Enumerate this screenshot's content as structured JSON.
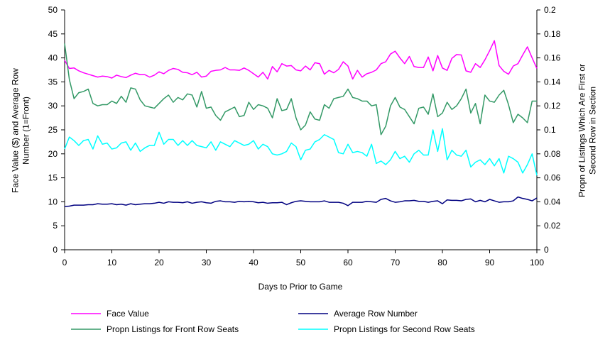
{
  "chart_data": {
    "type": "line",
    "xlabel": "Days to Prior to Game",
    "ylabel_left": "Face Value ($) and Average Row Number (1=Front)",
    "ylabel_right": "Propn of Listings Which Are First or Second Row in Section",
    "xlim": [
      0,
      100
    ],
    "xticks": [
      "0",
      "10",
      "20",
      "30",
      "40",
      "50",
      "60",
      "70",
      "80",
      "90",
      "100"
    ],
    "ylim_left": [
      0,
      50
    ],
    "yticks_left": [
      "0",
      "5",
      "10",
      "15",
      "20",
      "25",
      "30",
      "35",
      "40",
      "45",
      "50"
    ],
    "ylim_right": [
      0,
      0.2
    ],
    "yticks_right": [
      "0",
      "0.02",
      "0.04",
      "0.06",
      "0.08",
      "0.1",
      "0.12",
      "0.14",
      "0.16",
      "0.18",
      "0.2"
    ],
    "grid": false,
    "legend_position": "bottom",
    "x": [
      0,
      1,
      2,
      3,
      4,
      5,
      6,
      7,
      8,
      9,
      10,
      11,
      12,
      13,
      14,
      15,
      16,
      17,
      18,
      19,
      20,
      21,
      22,
      23,
      24,
      25,
      26,
      27,
      28,
      29,
      30,
      31,
      32,
      33,
      34,
      35,
      36,
      37,
      38,
      39,
      40,
      41,
      42,
      43,
      44,
      45,
      46,
      47,
      48,
      49,
      50,
      51,
      52,
      53,
      54,
      55,
      56,
      57,
      58,
      59,
      60,
      61,
      62,
      63,
      64,
      65,
      66,
      67,
      68,
      69,
      70,
      71,
      72,
      73,
      74,
      75,
      76,
      77,
      78,
      79,
      80,
      81,
      82,
      83,
      84,
      85,
      86,
      87,
      88,
      89,
      90,
      91,
      92,
      93,
      94,
      95,
      96,
      97,
      98,
      99,
      100
    ],
    "series": [
      {
        "name": "Face Value",
        "axis": "left",
        "color": "#ff00ff",
        "values": [
          39.5,
          37.8,
          37.9,
          37.3,
          36.9,
          36.6,
          36.3,
          36.0,
          36.2,
          36.1,
          35.8,
          36.4,
          36.1,
          35.9,
          36.4,
          36.8,
          36.5,
          36.5,
          36.0,
          36.4,
          37.1,
          36.7,
          37.4,
          37.8,
          37.6,
          37.0,
          36.9,
          36.5,
          37.0,
          36.0,
          36.2,
          37.2,
          37.4,
          37.5,
          38.0,
          37.5,
          37.5,
          37.4,
          37.9,
          37.4,
          36.7,
          36.0,
          37.0,
          35.6,
          38.2,
          37.1,
          38.8,
          38.3,
          38.4,
          37.5,
          37.3,
          38.3,
          37.5,
          39.0,
          38.8,
          36.6,
          37.4,
          36.9,
          37.6,
          39.2,
          38.3,
          35.6,
          37.4,
          36.0,
          36.7,
          37.0,
          37.5,
          38.8,
          39.2,
          40.8,
          41.4,
          40.0,
          38.8,
          40.3,
          38.2,
          38.0,
          38.0,
          40.2,
          37.3,
          40.5,
          37.9,
          37.4,
          39.9,
          40.7,
          40.6,
          37.3,
          37.0,
          38.8,
          38.0,
          39.6,
          41.5,
          43.6,
          38.4,
          37.2,
          36.6,
          38.3,
          38.8,
          40.6,
          42.3,
          40.0,
          37.8
        ]
      },
      {
        "name": "Average Row Number",
        "axis": "left",
        "color": "#000080",
        "values": [
          9.0,
          9.1,
          9.3,
          9.3,
          9.3,
          9.4,
          9.4,
          9.6,
          9.5,
          9.5,
          9.6,
          9.4,
          9.5,
          9.3,
          9.6,
          9.4,
          9.5,
          9.6,
          9.6,
          9.7,
          9.9,
          9.7,
          10.0,
          9.9,
          9.9,
          9.8,
          10.0,
          9.7,
          9.9,
          10.0,
          9.8,
          9.7,
          10.1,
          10.2,
          10.0,
          10.0,
          9.9,
          10.1,
          10.0,
          10.1,
          10.0,
          9.8,
          9.9,
          9.7,
          9.8,
          9.8,
          9.9,
          9.4,
          9.8,
          10.1,
          10.2,
          10.1,
          10.0,
          10.0,
          10.0,
          10.2,
          9.9,
          9.9,
          9.9,
          9.7,
          9.2,
          9.9,
          9.9,
          9.9,
          10.1,
          10.0,
          9.9,
          10.5,
          10.7,
          10.2,
          9.9,
          10.0,
          10.2,
          10.2,
          10.3,
          10.1,
          10.1,
          9.9,
          10.1,
          10.2,
          9.6,
          10.4,
          10.3,
          10.3,
          10.2,
          10.5,
          10.6,
          10.0,
          10.3,
          10.0,
          10.5,
          10.2,
          9.9,
          10.0,
          10.0,
          10.2,
          11.0,
          10.7,
          10.5,
          10.2,
          10.8
        ]
      },
      {
        "name": "Propn Listings for Front Row Seats",
        "axis": "right",
        "color": "#339966",
        "values": [
          0.172,
          0.142,
          0.126,
          0.131,
          0.132,
          0.134,
          0.122,
          0.12,
          0.121,
          0.121,
          0.124,
          0.122,
          0.128,
          0.123,
          0.135,
          0.134,
          0.125,
          0.12,
          0.119,
          0.118,
          0.122,
          0.126,
          0.129,
          0.123,
          0.127,
          0.125,
          0.13,
          0.129,
          0.119,
          0.132,
          0.118,
          0.119,
          0.112,
          0.108,
          0.115,
          0.117,
          0.119,
          0.111,
          0.112,
          0.123,
          0.117,
          0.121,
          0.12,
          0.118,
          0.11,
          0.126,
          0.116,
          0.117,
          0.126,
          0.11,
          0.1,
          0.104,
          0.115,
          0.109,
          0.108,
          0.121,
          0.118,
          0.126,
          0.127,
          0.128,
          0.134,
          0.127,
          0.126,
          0.124,
          0.124,
          0.12,
          0.121,
          0.096,
          0.103,
          0.12,
          0.127,
          0.119,
          0.117,
          0.111,
          0.105,
          0.118,
          0.119,
          0.113,
          0.13,
          0.111,
          0.114,
          0.123,
          0.117,
          0.12,
          0.126,
          0.134,
          0.114,
          0.122,
          0.105,
          0.129,
          0.124,
          0.123,
          0.129,
          0.133,
          0.121,
          0.106,
          0.113,
          0.11,
          0.106,
          0.124,
          0.124
        ]
      },
      {
        "name": "Propn Listings for Second Row Seats",
        "axis": "right",
        "color": "#00ffff",
        "values": [
          0.084,
          0.094,
          0.091,
          0.087,
          0.091,
          0.092,
          0.084,
          0.095,
          0.088,
          0.089,
          0.084,
          0.085,
          0.089,
          0.09,
          0.083,
          0.089,
          0.082,
          0.085,
          0.087,
          0.087,
          0.098,
          0.088,
          0.092,
          0.092,
          0.087,
          0.091,
          0.087,
          0.091,
          0.087,
          0.086,
          0.085,
          0.09,
          0.083,
          0.09,
          0.088,
          0.086,
          0.091,
          0.089,
          0.087,
          0.088,
          0.091,
          0.084,
          0.088,
          0.086,
          0.08,
          0.079,
          0.08,
          0.082,
          0.089,
          0.086,
          0.075,
          0.083,
          0.084,
          0.09,
          0.092,
          0.096,
          0.094,
          0.092,
          0.081,
          0.08,
          0.088,
          0.081,
          0.082,
          0.081,
          0.078,
          0.088,
          0.072,
          0.074,
          0.071,
          0.075,
          0.082,
          0.076,
          0.078,
          0.073,
          0.08,
          0.083,
          0.079,
          0.079,
          0.1,
          0.082,
          0.101,
          0.075,
          0.083,
          0.079,
          0.078,
          0.083,
          0.069,
          0.073,
          0.075,
          0.071,
          0.076,
          0.07,
          0.076,
          0.064,
          0.078,
          0.076,
          0.073,
          0.064,
          0.071,
          0.08,
          0.062
        ]
      }
    ]
  }
}
